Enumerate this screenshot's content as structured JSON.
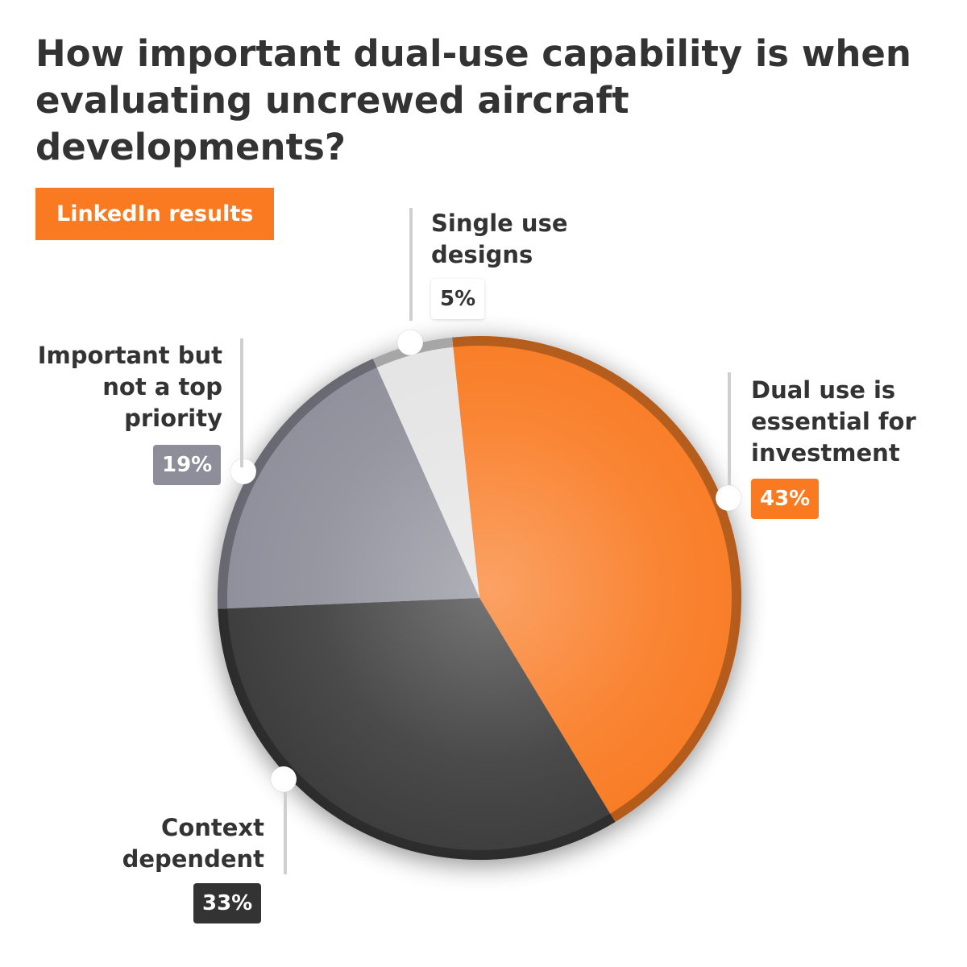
{
  "chart_data": {
    "type": "pie",
    "title": "How important dual-use capability is when evaluating uncrewed aircraft developments?",
    "badge": "LinkedIn results",
    "slices": [
      {
        "label": "Dual use is essential for investment",
        "value": 43,
        "display": "43%",
        "color": "#f97a20"
      },
      {
        "label": "Context dependent",
        "value": 33,
        "display": "33%",
        "color": "#3a3a3a"
      },
      {
        "label": "Important but not a top priority",
        "value": 19,
        "display": "19%",
        "color": "#8e8e9a"
      },
      {
        "label": "Single use designs",
        "value": 5,
        "display": "5%",
        "color": "#e4e4e4"
      }
    ]
  }
}
